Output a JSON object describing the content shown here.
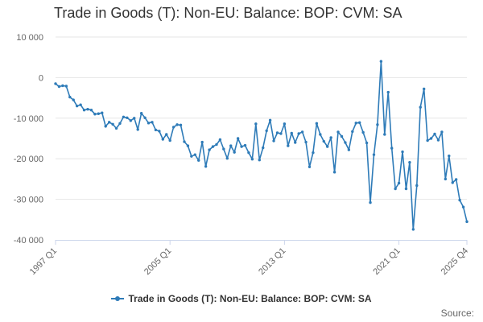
{
  "colors": {
    "series": "#2e7bb8",
    "grid": "#e6e6e6",
    "axis_text": "#666666"
  },
  "source_label": "Source:",
  "chart_data": {
    "type": "line",
    "title": "Trade in Goods (T): Non-EU: Balance: BOP: CVM: SA",
    "series_name": "Trade in Goods (T): Non-EU: Balance: BOP: CVM: SA",
    "ylim": [
      -40000,
      10000
    ],
    "y_ticks": [
      10000,
      0,
      -10000,
      -20000,
      -30000,
      -40000
    ],
    "y_tick_labels": [
      "10 000",
      "0",
      "-10 000",
      "-20 000",
      "-30 000",
      "-40 000"
    ],
    "x_start": "1997 Q1",
    "x_ticks": [
      "1997 Q1",
      "2005 Q1",
      "2013 Q1",
      "2021 Q1",
      "2025 Q4"
    ],
    "x_tick_indices": [
      0,
      32,
      64,
      96,
      115
    ],
    "legend_position": "bottom",
    "values": [
      -1500,
      -2200,
      -2000,
      -2100,
      -4800,
      -5500,
      -7000,
      -6700,
      -8000,
      -7800,
      -8000,
      -9000,
      -8900,
      -8700,
      -12000,
      -11000,
      -11500,
      -12500,
      -11300,
      -9700,
      -9900,
      -10600,
      -10000,
      -12800,
      -8800,
      -9900,
      -11200,
      -11000,
      -12900,
      -13200,
      -15200,
      -14000,
      -15500,
      -12200,
      -11600,
      -11700,
      -15800,
      -16800,
      -19400,
      -19000,
      -20400,
      -15900,
      -21900,
      -17800,
      -17000,
      -16500,
      -15300,
      -17600,
      -19900,
      -16800,
      -18400,
      -15000,
      -17000,
      -16700,
      -18500,
      -20100,
      -11400,
      -20300,
      -17300,
      -13100,
      -10500,
      -15600,
      -13600,
      -13800,
      -11400,
      -16800,
      -13700,
      -16000,
      -13800,
      -13400,
      -15900,
      -22000,
      -18500,
      -11300,
      -14000,
      -15700,
      -17000,
      -14800,
      -23300,
      -13400,
      -14500,
      -16000,
      -17800,
      -13300,
      -11200,
      -11100,
      -13500,
      -16100,
      -30800,
      -19000,
      -11600,
      4000,
      -14000,
      -3600,
      -17400,
      -27400,
      -26000,
      -18300,
      -27400,
      -20900,
      -37400,
      -26600,
      -7300,
      -2800,
      -15500,
      -15000,
      -13900,
      -15400,
      -13400,
      -25000,
      -19300,
      -25900,
      -25100,
      -30200,
      -31900,
      -35500
    ]
  }
}
